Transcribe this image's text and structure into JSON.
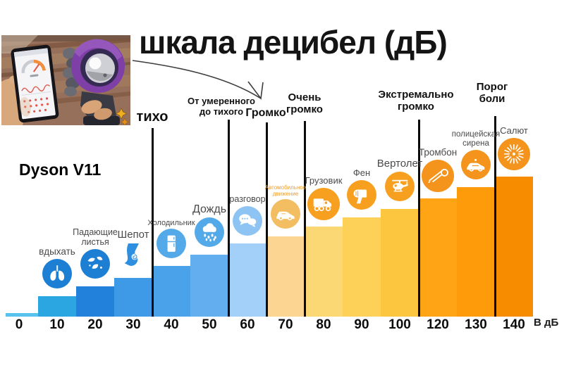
{
  "title": "шкала децибел (дБ)",
  "product_label": "Dyson V11",
  "axis_unit": "В дБ",
  "chart_data": {
    "type": "bar",
    "title": "шкала децибел (дБ)",
    "xlabel": "В дБ",
    "ylabel": "",
    "x_ticks": [
      "0",
      "10",
      "20",
      "30",
      "40",
      "50",
      "60",
      "70",
      "80",
      "90",
      "100",
      "120",
      "130",
      "140"
    ],
    "categories": [
      0,
      10,
      20,
      30,
      40,
      50,
      60,
      70,
      80,
      90,
      100,
      120,
      130,
      140
    ],
    "values": [
      0,
      10,
      20,
      30,
      40,
      50,
      60,
      70,
      80,
      90,
      100,
      120,
      130,
      140
    ],
    "bars": [
      {
        "db": "0",
        "label_lines": [],
        "icon": ""
      },
      {
        "db": "10",
        "label_lines": [
          "вдыхать"
        ],
        "icon": "lungs-icon"
      },
      {
        "db": "20",
        "label_lines": [
          "Падающие",
          "листья"
        ],
        "icon": "falling-leaves-icon"
      },
      {
        "db": "30",
        "label_lines": [
          "Шепот"
        ],
        "icon": "whisper-icon"
      },
      {
        "db": "40",
        "label_lines": [
          "Холодильник"
        ],
        "icon": "refrigerator-icon"
      },
      {
        "db": "50",
        "label_lines": [
          "Дождь"
        ],
        "icon": "rain-cloud-icon"
      },
      {
        "db": "60",
        "label_lines": [
          "разговор"
        ],
        "icon": "conversation-icon"
      },
      {
        "db": "70",
        "label_lines": [
          "Автомобильное",
          "движение"
        ],
        "icon": "car-traffic-icon"
      },
      {
        "db": "80",
        "label_lines": [
          "Грузовик"
        ],
        "icon": "truck-icon"
      },
      {
        "db": "90",
        "label_lines": [
          "Фен"
        ],
        "icon": "hair-dryer-icon"
      },
      {
        "db": "100",
        "label_lines": [
          "Вертолет"
        ],
        "icon": "helicopter-icon"
      },
      {
        "db": "120",
        "label_lines": [
          "Тромбон"
        ],
        "icon": "trombone-icon"
      },
      {
        "db": "130",
        "label_lines": [
          "полицейская",
          "сирена"
        ],
        "icon": "police-siren-icon"
      },
      {
        "db": "140",
        "label_lines": [
          "Салют"
        ],
        "icon": "fireworks-icon"
      }
    ],
    "zones": [
      {
        "label": "тихо",
        "lines": [
          "тихо"
        ],
        "boundary_after_db": 30
      },
      {
        "label": "От умеренного до тихого",
        "lines": [
          "От умеренного",
          "до тихого"
        ],
        "boundary_after_db": 50
      },
      {
        "label": "Громко",
        "lines": [
          "Громко"
        ],
        "boundary_after_db": 60
      },
      {
        "label": "Очень громко",
        "lines": [
          "Очень",
          "громко"
        ],
        "boundary_after_db": 70
      },
      {
        "label": "Экстремально громко",
        "lines": [
          "Экстремально",
          "громко"
        ],
        "boundary_after_db": 100
      },
      {
        "label": "Порог боли",
        "lines": [
          "Порог",
          "боли"
        ],
        "boundary_after_db": 130
      }
    ],
    "colors": {
      "bar_colors": [
        "#58c2ef",
        "#2ba6e0",
        "#2281db",
        "#3e9ae6",
        "#4aa3ea",
        "#62aeef",
        "#a3d0f8",
        "#fbd591",
        "#fbd874",
        "#fdd058",
        "#fdc63f",
        "#ffa415",
        "#fd9b0a",
        "#f78c00"
      ],
      "icon_circle_colors": [
        "",
        "#1d7fd4",
        "#1d7fd4",
        "#2e8fe0",
        "#54a9e9",
        "#54a9e9",
        "#8ec4f4",
        "#f3bd62",
        "#f7a01f",
        "#f7a01f",
        "#f7a01f",
        "#f5941d",
        "#f5941d",
        "#f5941d"
      ],
      "label_color": "#4a4a4a",
      "traffic_label_color": "#ef9f30",
      "zone_line_color": "#0b0b0b"
    }
  }
}
